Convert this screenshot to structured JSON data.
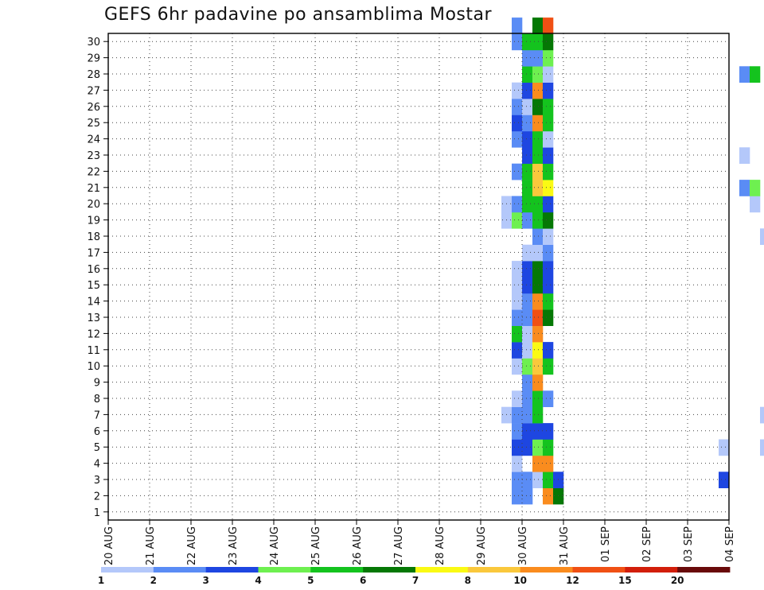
{
  "chart_data": {
    "type": "heatmap",
    "title": "GEFS 6hr padavine po ansamblima Mostar",
    "xlabel": "",
    "ylabel": "",
    "x_ticks": [
      "20 AUG",
      "21 AUG",
      "22 AUG",
      "23 AUG",
      "24 AUG",
      "25 AUG",
      "26 AUG",
      "27 AUG",
      "28 AUG",
      "29 AUG",
      "30 AUG",
      "31 AUG",
      "01 SEP",
      "02 SEP",
      "03 SEP",
      "04 SEP"
    ],
    "y_ticks": [
      "1",
      "2",
      "3",
      "4",
      "5",
      "6",
      "7",
      "8",
      "9",
      "10",
      "11",
      "12",
      "13",
      "14",
      "15",
      "16",
      "17",
      "18",
      "19",
      "20",
      "21",
      "22",
      "23",
      "24",
      "25",
      "26",
      "27",
      "28",
      "29",
      "30"
    ],
    "x_range": [
      "20 AUG 00Z",
      "04 SEP 00Z"
    ],
    "x_step": "6hr",
    "y_range": [
      0,
      30
    ],
    "grid": true,
    "legend": {
      "placement": "bottom",
      "labels": [
        "1",
        "2",
        "3",
        "4",
        "5",
        "6",
        "7",
        "8",
        "10",
        "12",
        "15",
        "20"
      ],
      "colors": [
        "#b4c8fa",
        "#5a8cf5",
        "#1e46e1",
        "#6ef050",
        "#14c31e",
        "#057805",
        "#fafa14",
        "#fac83c",
        "#fa8c1e",
        "#f05014",
        "#d21e0a",
        "#690a0a"
      ]
    },
    "series": [
      {
        "member": 0,
        "cells": [
          [
            22.75,
            4
          ],
          [
            33.5,
            1
          ],
          [
            51.25,
            2
          ],
          [
            52.25,
            10
          ],
          [
            53.5,
            0
          ],
          [
            56.75,
            11
          ]
        ]
      },
      {
        "member": 1,
        "cells": [
          [
            9.75,
            1
          ],
          [
            10.0,
            1
          ],
          [
            10.5,
            8
          ],
          [
            10.75,
            5
          ],
          [
            49.0,
            2
          ],
          [
            54.75,
            1
          ]
        ]
      },
      {
        "member": 2,
        "cells": [
          [
            9.75,
            1
          ],
          [
            10.0,
            1
          ],
          [
            10.25,
            0
          ],
          [
            10.5,
            4
          ],
          [
            10.75,
            2
          ],
          [
            14.75,
            2
          ],
          [
            31.0,
            0
          ],
          [
            33.75,
            1
          ],
          [
            34.0,
            4
          ],
          [
            35.75,
            1
          ],
          [
            36.0,
            2
          ],
          [
            37.5,
            2
          ],
          [
            37.75,
            2
          ],
          [
            38.0,
            2
          ],
          [
            38.5,
            2
          ],
          [
            39.0,
            0
          ],
          [
            39.25,
            0
          ],
          [
            40.0,
            2
          ],
          [
            40.25,
            2
          ],
          [
            40.5,
            2
          ]
        ]
      },
      {
        "member": 3,
        "cells": [
          [
            9.75,
            0
          ],
          [
            10.25,
            8
          ],
          [
            10.5,
            8
          ]
        ]
      },
      {
        "member": 4,
        "cells": [
          [
            9.75,
            2
          ],
          [
            10.0,
            2
          ],
          [
            10.25,
            3
          ],
          [
            10.5,
            4
          ],
          [
            14.75,
            0
          ],
          [
            15.75,
            0
          ],
          [
            16.0,
            7
          ],
          [
            16.25,
            4
          ],
          [
            38.75,
            2
          ],
          [
            39.25,
            3
          ],
          [
            39.5,
            2
          ],
          [
            40.0,
            8
          ],
          [
            40.25,
            8
          ]
        ]
      },
      {
        "member": 5,
        "cells": [
          [
            9.75,
            1
          ],
          [
            10.0,
            2
          ],
          [
            10.25,
            2
          ],
          [
            10.5,
            2
          ],
          [
            34.75,
            0
          ],
          [
            35.5,
            0
          ],
          [
            35.75,
            1
          ],
          [
            36.25,
            1
          ],
          [
            36.5,
            9
          ],
          [
            37.0,
            1
          ],
          [
            37.25,
            1
          ],
          [
            37.5,
            2
          ],
          [
            38.25,
            0
          ],
          [
            39.25,
            0
          ],
          [
            39.75,
            1
          ],
          [
            40.0,
            0
          ],
          [
            40.5,
            0
          ]
        ]
      },
      {
        "member": 6,
        "cells": [
          [
            9.5,
            0
          ],
          [
            9.75,
            1
          ],
          [
            10.0,
            1
          ],
          [
            10.25,
            4
          ],
          [
            15.75,
            0
          ],
          [
            44.0,
            1
          ]
        ]
      },
      {
        "member": 7,
        "cells": [
          [
            9.75,
            0
          ],
          [
            10.0,
            1
          ],
          [
            10.25,
            4
          ],
          [
            10.5,
            1
          ],
          [
            31.5,
            2
          ],
          [
            31.75,
            2
          ],
          [
            38.25,
            1
          ],
          [
            38.5,
            2
          ],
          [
            38.75,
            1
          ],
          [
            43.75,
            0
          ]
        ]
      },
      {
        "member": 8,
        "cells": [
          [
            10.0,
            1
          ],
          [
            10.25,
            8
          ]
        ]
      },
      {
        "member": 9,
        "cells": [
          [
            9.75,
            0
          ],
          [
            10.0,
            3
          ],
          [
            10.25,
            7
          ],
          [
            10.5,
            4
          ]
        ]
      },
      {
        "member": 10,
        "cells": [
          [
            9.75,
            2
          ],
          [
            10.0,
            0
          ],
          [
            10.25,
            6
          ],
          [
            10.5,
            2
          ],
          [
            30.75,
            0
          ],
          [
            34.75,
            0
          ],
          [
            35.0,
            1
          ],
          [
            35.25,
            4
          ],
          [
            35.5,
            0
          ],
          [
            35.75,
            0
          ]
        ]
      },
      {
        "member": 11,
        "cells": [
          [
            9.75,
            4
          ],
          [
            10.0,
            0
          ],
          [
            10.25,
            8
          ],
          [
            35.75,
            0
          ],
          [
            39.5,
            1
          ]
        ]
      },
      {
        "member": 12,
        "cells": [
          [
            9.75,
            1
          ],
          [
            10.0,
            1
          ],
          [
            10.25,
            9
          ],
          [
            10.5,
            5
          ],
          [
            19.75,
            0
          ],
          [
            20.0,
            3
          ],
          [
            31.5,
            2
          ],
          [
            31.75,
            5
          ],
          [
            32.0,
            5
          ],
          [
            32.25,
            0
          ],
          [
            36.75,
            0
          ],
          [
            38.75,
            0
          ],
          [
            39.0,
            3
          ],
          [
            39.25,
            3
          ]
        ]
      },
      {
        "member": 13,
        "cells": [
          [
            9.75,
            0
          ],
          [
            10.0,
            1
          ],
          [
            10.25,
            8
          ],
          [
            10.5,
            4
          ]
        ]
      },
      {
        "member": 14,
        "cells": [
          [
            9.75,
            0
          ],
          [
            10.0,
            2
          ],
          [
            10.25,
            5
          ],
          [
            10.5,
            2
          ],
          [
            18.5,
            0
          ]
        ]
      },
      {
        "member": 15,
        "cells": [
          [
            9.75,
            0
          ],
          [
            10.0,
            2
          ],
          [
            10.25,
            5
          ],
          [
            10.5,
            2
          ],
          [
            31.5,
            1
          ],
          [
            35.0,
            0
          ],
          [
            35.5,
            0
          ],
          [
            18.5,
            0
          ]
        ]
      },
      {
        "member": 16,
        "cells": [
          [
            10.0,
            0
          ],
          [
            10.25,
            0
          ],
          [
            10.5,
            1
          ],
          [
            34.75,
            5
          ],
          [
            35.75,
            0
          ],
          [
            40.25,
            0
          ],
          [
            42.5,
            0
          ],
          [
            42.75,
            0
          ]
        ]
      },
      {
        "member": 17,
        "cells": [
          [
            10.25,
            1
          ],
          [
            10.5,
            0
          ],
          [
            15.75,
            0
          ],
          [
            42.5,
            4
          ],
          [
            42.75,
            4
          ]
        ]
      },
      {
        "member": 18,
        "cells": [
          [
            9.5,
            0
          ],
          [
            9.75,
            3
          ],
          [
            10.0,
            1
          ],
          [
            10.25,
            4
          ],
          [
            10.5,
            5
          ],
          [
            16.25,
            0
          ],
          [
            16.5,
            1
          ],
          [
            38.75,
            0
          ],
          [
            39.0,
            3
          ],
          [
            39.25,
            3
          ],
          [
            42.75,
            0
          ]
        ]
      },
      {
        "member": 19,
        "cells": [
          [
            9.5,
            0
          ],
          [
            9.75,
            1
          ],
          [
            10.0,
            4
          ],
          [
            10.25,
            4
          ],
          [
            10.5,
            2
          ],
          [
            15.5,
            0
          ],
          [
            18.25,
            1
          ],
          [
            36.25,
            0
          ],
          [
            36.5,
            11
          ],
          [
            37.5,
            1
          ],
          [
            38.25,
            1
          ]
        ]
      },
      {
        "member": 20,
        "cells": [
          [
            10.0,
            4
          ],
          [
            10.25,
            7
          ],
          [
            10.5,
            6
          ],
          [
            15.25,
            1
          ],
          [
            15.5,
            3
          ]
        ]
      },
      {
        "member": 21,
        "cells": [
          [
            9.75,
            1
          ],
          [
            10.0,
            4
          ],
          [
            10.25,
            7
          ],
          [
            10.5,
            4
          ]
        ]
      },
      {
        "member": 22,
        "cells": [
          [
            10.0,
            2
          ],
          [
            10.25,
            4
          ],
          [
            10.5,
            2
          ],
          [
            15.25,
            0
          ],
          [
            34.0,
            1
          ]
        ]
      },
      {
        "member": 23,
        "cells": [
          [
            9.75,
            1
          ],
          [
            10.0,
            2
          ],
          [
            10.25,
            4
          ],
          [
            10.5,
            0
          ],
          [
            19.5,
            0
          ],
          [
            38.75,
            0
          ]
        ]
      },
      {
        "member": 24,
        "cells": [
          [
            9.75,
            2
          ],
          [
            10.0,
            1
          ],
          [
            10.25,
            8
          ],
          [
            10.5,
            4
          ],
          [
            36.0,
            8
          ],
          [
            36.25,
            9
          ]
        ]
      },
      {
        "member": 25,
        "cells": [
          [
            9.75,
            1
          ],
          [
            10.0,
            0
          ],
          [
            10.25,
            5
          ],
          [
            10.5,
            4
          ],
          [
            29.75,
            1
          ],
          [
            30.0,
            1
          ],
          [
            30.75,
            1
          ],
          [
            31.0,
            0
          ],
          [
            31.25,
            0
          ],
          [
            31.5,
            9
          ],
          [
            31.75,
            6
          ]
        ]
      },
      {
        "member": 26,
        "cells": [
          [
            9.75,
            0
          ],
          [
            10.0,
            2
          ],
          [
            10.25,
            8
          ],
          [
            10.5,
            2
          ],
          [
            24.75,
            0
          ],
          [
            25.0,
            0
          ],
          [
            34.0,
            4
          ],
          [
            34.25,
            8
          ],
          [
            34.75,
            0
          ],
          [
            35.0,
            2
          ],
          [
            38.25,
            9
          ],
          [
            38.5,
            0
          ]
        ]
      },
      {
        "member": 27,
        "cells": [
          [
            10.0,
            4
          ],
          [
            10.25,
            3
          ],
          [
            10.5,
            0
          ],
          [
            15.25,
            1
          ],
          [
            15.5,
            4
          ],
          [
            19.25,
            0
          ]
        ]
      },
      {
        "member": 28,
        "cells": [
          [
            10.0,
            1
          ],
          [
            10.25,
            1
          ],
          [
            10.5,
            3
          ]
        ]
      },
      {
        "member": 29,
        "cells": [
          [
            9.75,
            1
          ],
          [
            10.0,
            4
          ],
          [
            10.25,
            4
          ],
          [
            10.5,
            5
          ],
          [
            21.0,
            8
          ],
          [
            36.75,
            2
          ],
          [
            37.0,
            0
          ]
        ]
      },
      {
        "member": 30,
        "cells": [
          [
            9.75,
            1
          ],
          [
            10.25,
            5
          ],
          [
            10.5,
            9
          ],
          [
            38.5,
            0
          ]
        ]
      }
    ]
  }
}
